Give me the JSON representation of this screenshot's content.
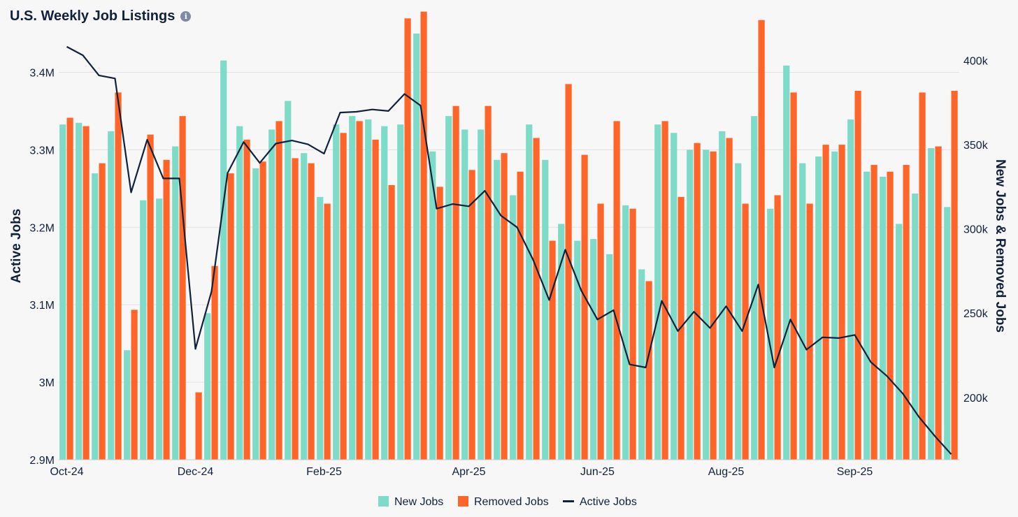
{
  "title": "U.S. Weekly Job Listings",
  "info_icon": "info-icon",
  "colors": {
    "new_jobs": "#7ddbc7",
    "removed_jobs": "#ff6528",
    "active_jobs": "#10213c",
    "grid": "#e2e2e2",
    "background": "#f7f7f7"
  },
  "chart_data": {
    "type": "bar+line",
    "title": "U.S. Weekly Job Listings",
    "ylabel_left": "Active Jobs",
    "ylabel_right": "New Jobs & Removed Jobs",
    "ylim_left": [
      2900000,
      3450000
    ],
    "ylim_right": [
      163000,
      416000
    ],
    "yticks_left": [
      "3.4M",
      "3.3M",
      "3.2M",
      "3.1M",
      "3M",
      "2.9M"
    ],
    "yticks_left_values": [
      3400000,
      3300000,
      3200000,
      3100000,
      3000000,
      2900000
    ],
    "yticks_right": [
      "400k",
      "350k",
      "300k",
      "250k",
      "200k"
    ],
    "yticks_right_values": [
      400000,
      350000,
      300000,
      250000,
      200000
    ],
    "xtick_labels": [
      {
        "label": "Oct-24",
        "week": 0
      },
      {
        "label": "Dec-24",
        "week": 8
      },
      {
        "label": "Feb-25",
        "week": 16
      },
      {
        "label": "Apr-25",
        "week": 25
      },
      {
        "label": "Jun-25",
        "week": 33
      },
      {
        "label": "Aug-25",
        "week": 41
      },
      {
        "label": "Sep-25",
        "week": 49
      }
    ],
    "legend": [
      "New Jobs",
      "Removed Jobs",
      "Active Jobs"
    ],
    "legend_position": "bottom-center",
    "grid": true,
    "series": [
      {
        "name": "New Jobs",
        "kind": "bar",
        "axis": "right",
        "values": [
          362000,
          363000,
          333000,
          358000,
          228000,
          317000,
          318000,
          349000,
          163000,
          250000,
          400000,
          361000,
          336000,
          359000,
          376000,
          345000,
          319000,
          362000,
          367000,
          365000,
          361000,
          362000,
          416000,
          346000,
          367000,
          359000,
          359000,
          341000,
          320000,
          362000,
          341000,
          303000,
          293000,
          294000,
          285000,
          314000,
          276000,
          362000,
          357000,
          347000,
          347000,
          358000,
          339000,
          367000,
          312000,
          397000,
          339000,
          343000,
          346000,
          365000,
          334000,
          331000,
          303000,
          321000,
          348000,
          313000
        ],
        "dates": null
      },
      {
        "name": "Removed Jobs",
        "kind": "bar",
        "axis": "right",
        "values": [
          366000,
          361000,
          339000,
          381000,
          252000,
          356000,
          341000,
          367000,
          203000,
          278000,
          333000,
          353000,
          340000,
          364000,
          342000,
          339000,
          315000,
          357000,
          364000,
          353000,
          326000,
          425000,
          429000,
          325000,
          373000,
          335000,
          373000,
          345000,
          334000,
          354000,
          293000,
          386000,
          344000,
          315000,
          364000,
          312000,
          269000,
          364000,
          319000,
          351000,
          346000,
          354000,
          315000,
          424000,
          320000,
          381000,
          315000,
          350000,
          350000,
          382000,
          338000,
          334000,
          338000,
          381000,
          349000,
          382000
        ],
        "dates": null
      },
      {
        "name": "Active Jobs",
        "kind": "line",
        "axis": "left",
        "values": [
          3433000,
          3422000,
          3396000,
          3392000,
          3245000,
          3313000,
          3263000,
          3263000,
          3043000,
          3117000,
          3270000,
          3310000,
          3283000,
          3308000,
          3312000,
          3307000,
          3295000,
          3348000,
          3349000,
          3352000,
          3350000,
          3372000,
          3357000,
          3224000,
          3230000,
          3227000,
          3247000,
          3215000,
          3200000,
          3158000,
          3106000,
          3171000,
          3118000,
          3081000,
          3093000,
          3023000,
          3019000,
          3105000,
          3066000,
          3091000,
          3070000,
          3098000,
          3066000,
          3126000,
          3019000,
          3081000,
          3042000,
          3058000,
          3057000,
          3061000,
          3026000,
          3008000,
          2985000,
          2955000,
          2930000,
          2907000
        ]
      }
    ]
  }
}
